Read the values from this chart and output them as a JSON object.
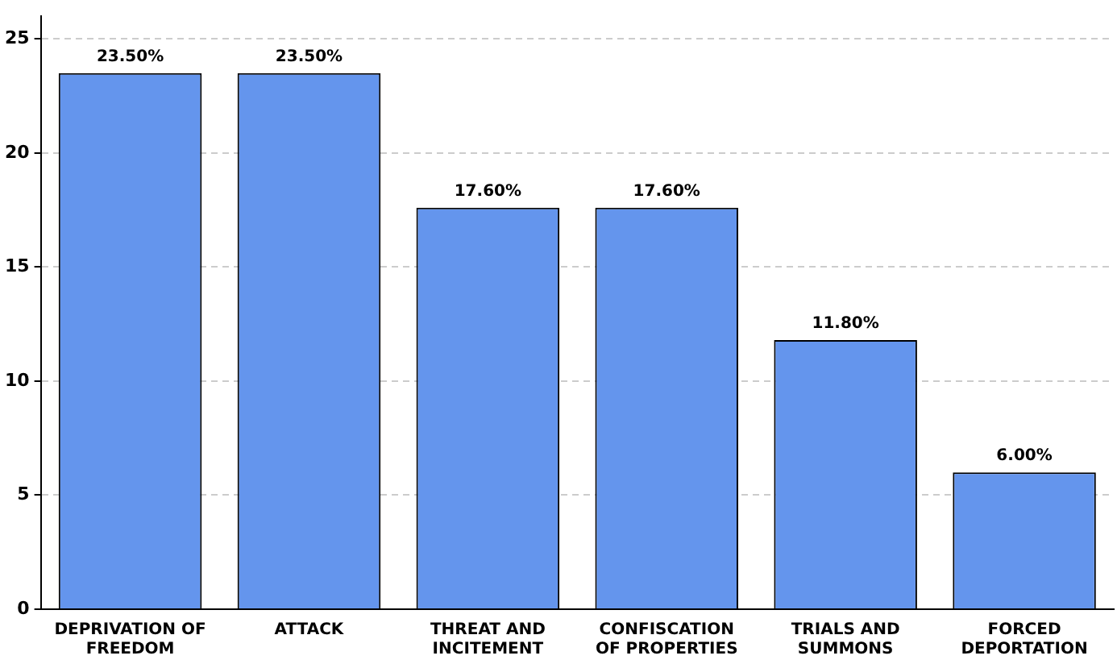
{
  "chart_data": {
    "type": "bar",
    "categories": [
      "DEPRIVATION OF FREEDOM",
      "ATTACK",
      "THREAT AND INCITEMENT",
      "CONFISCATION OF PROPERTIES",
      "TRIALS AND SUMMONS",
      "FORCED DEPORTATION"
    ],
    "values": [
      23.5,
      23.5,
      17.6,
      17.6,
      11.8,
      6.0
    ],
    "value_labels": [
      "23.50%",
      "23.50%",
      "17.60%",
      "17.60%",
      "11.80%",
      "6.00%"
    ],
    "color": "#6495ed",
    "ylim": [
      0,
      26
    ],
    "yticks": [
      0,
      5,
      10,
      15,
      20,
      25
    ],
    "grid": "y",
    "legend": false
  }
}
